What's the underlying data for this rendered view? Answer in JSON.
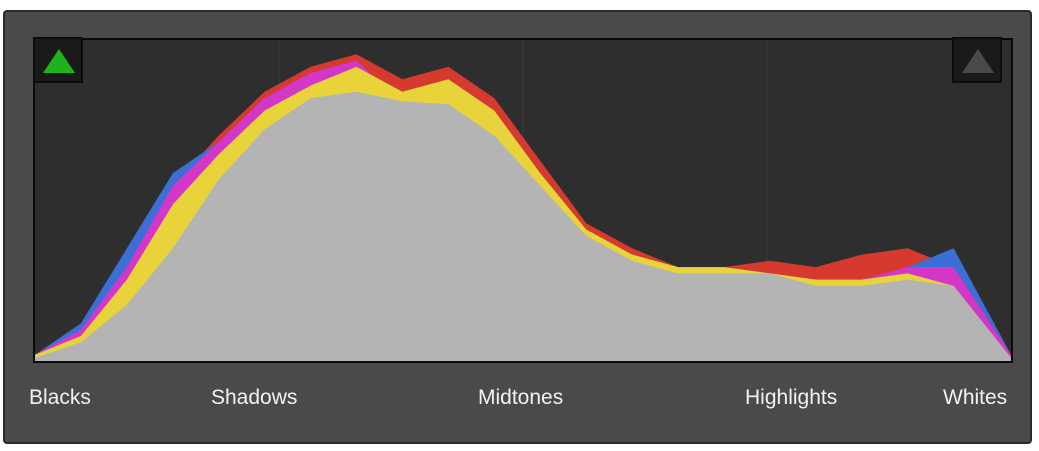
{
  "histogram": {
    "region_labels": [
      "Blacks",
      "Shadows",
      "Midtones",
      "Highlights",
      "Whites"
    ],
    "shadow_clipping_indicator": {
      "icon": "triangle-up-icon",
      "state": "on",
      "color": "#1db31d"
    },
    "highlight_clipping_indicator": {
      "icon": "triangle-up-icon",
      "state": "off",
      "color": "#4a4a4a"
    }
  },
  "colors": {
    "frame": "#4a4a4a",
    "plot_background": "#2e2e2e",
    "luminance": "#b4b4b4",
    "red": "#d63a2e",
    "green": "#3aa63a",
    "blue": "#3b6fd6",
    "cyan": "#34c7d1",
    "magenta": "#d436c8",
    "yellow": "#e8d43a"
  },
  "chart_data": {
    "type": "area",
    "x": [
      0,
      12,
      24,
      36,
      48,
      60,
      72,
      84,
      96,
      108,
      120,
      132,
      144,
      156,
      168,
      180,
      192,
      204,
      216,
      228,
      240,
      255
    ],
    "series": [
      {
        "values": [
          1,
          6,
          18,
          36,
          58,
          74,
          84,
          86,
          83,
          82,
          72,
          56,
          40,
          32,
          28,
          28,
          28,
          24,
          24,
          26,
          24,
          1
        ]
      },
      {
        "values": [
          2,
          10,
          30,
          56,
          72,
          86,
          94,
          98,
          90,
          94,
          84,
          64,
          44,
          36,
          30,
          30,
          32,
          30,
          34,
          36,
          30,
          2
        ]
      },
      {
        "values": [
          2,
          8,
          26,
          50,
          66,
          80,
          88,
          94,
          86,
          90,
          80,
          60,
          42,
          34,
          30,
          30,
          28,
          26,
          26,
          28,
          24,
          1
        ]
      },
      {
        "values": [
          2,
          12,
          36,
          60,
          70,
          84,
          92,
          96,
          82,
          88,
          74,
          54,
          38,
          32,
          30,
          30,
          28,
          26,
          26,
          30,
          36,
          2
        ]
      }
    ]
  }
}
